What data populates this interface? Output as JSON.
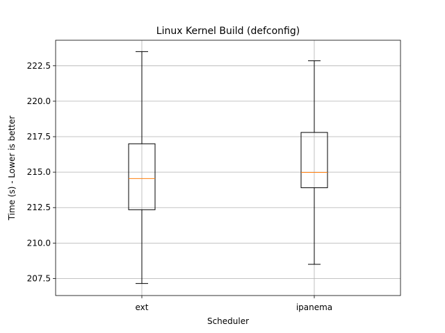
{
  "chart_data": {
    "type": "box",
    "title": "Linux Kernel Build (defconfig)",
    "xlabel": "Scheduler",
    "ylabel": "Time (s) - Lower is better",
    "ylim": [
      206.3,
      224.3
    ],
    "yticks": [
      "207.5",
      "210.0",
      "212.5",
      "215.0",
      "217.5",
      "220.0",
      "222.5"
    ],
    "grid": true,
    "categories": [
      "ext",
      "ipanema"
    ],
    "boxes": [
      {
        "name": "ext",
        "whisker_low": 207.15,
        "q1": 212.35,
        "median": 214.55,
        "q3": 217.0,
        "whisker_high": 223.5
      },
      {
        "name": "ipanema",
        "whisker_low": 208.5,
        "q1": 213.9,
        "median": 214.98,
        "q3": 217.8,
        "whisker_high": 222.85
      }
    ],
    "colors": {
      "box": "#000000",
      "median": "#ff7f0e",
      "grid": "#b0b0b0"
    }
  }
}
